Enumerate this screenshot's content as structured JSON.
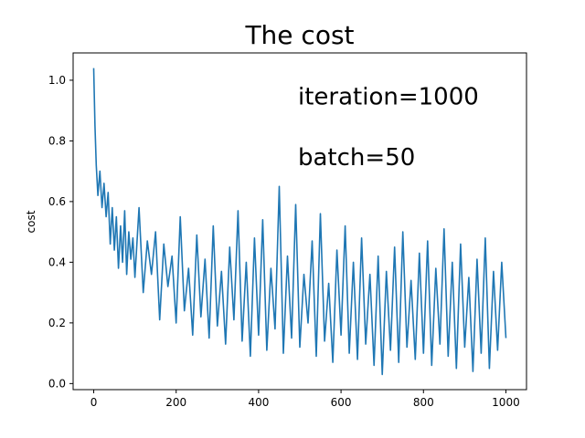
{
  "chart_data": {
    "type": "line",
    "title": "The cost",
    "xlabel": "",
    "ylabel": "cost",
    "xlim": [
      -50,
      1050
    ],
    "ylim": [
      -0.02,
      1.09
    ],
    "x_ticks": [
      0,
      200,
      400,
      600,
      800,
      1000
    ],
    "y_ticks": [
      0.0,
      0.2,
      0.4,
      0.6,
      0.8,
      1.0
    ],
    "x_tick_labels": [
      "0",
      "200",
      "400",
      "600",
      "800",
      "1000"
    ],
    "y_tick_labels": [
      "0.0",
      "0.2",
      "0.4",
      "0.6",
      "0.8",
      "1.0"
    ],
    "grid": false,
    "annotations": [
      {
        "text": "iteration=1000",
        "x": 500,
        "y": 0.92
      },
      {
        "text": "batch=50",
        "x": 500,
        "y": 0.72
      }
    ],
    "series": [
      {
        "color": "#1f77b4",
        "x": [
          0,
          3,
          6,
          10,
          15,
          20,
          25,
          30,
          35,
          40,
          45,
          50,
          55,
          60,
          65,
          70,
          75,
          80,
          85,
          90,
          95,
          100,
          110,
          120,
          130,
          140,
          150,
          160,
          170,
          180,
          190,
          200,
          210,
          220,
          230,
          240,
          250,
          260,
          270,
          280,
          290,
          300,
          310,
          320,
          330,
          340,
          350,
          360,
          370,
          380,
          390,
          400,
          410,
          420,
          430,
          440,
          450,
          460,
          470,
          480,
          490,
          500,
          510,
          520,
          530,
          540,
          550,
          560,
          570,
          580,
          590,
          600,
          610,
          620,
          630,
          640,
          650,
          660,
          670,
          680,
          690,
          700,
          710,
          720,
          730,
          740,
          750,
          760,
          770,
          780,
          790,
          800,
          810,
          820,
          830,
          840,
          850,
          860,
          870,
          880,
          890,
          900,
          910,
          920,
          930,
          940,
          950,
          960,
          970,
          980,
          990,
          1000
        ],
        "y": [
          1.04,
          0.85,
          0.72,
          0.62,
          0.7,
          0.58,
          0.66,
          0.55,
          0.63,
          0.46,
          0.58,
          0.44,
          0.55,
          0.38,
          0.52,
          0.4,
          0.57,
          0.36,
          0.5,
          0.41,
          0.48,
          0.35,
          0.58,
          0.3,
          0.47,
          0.36,
          0.5,
          0.21,
          0.46,
          0.32,
          0.42,
          0.2,
          0.55,
          0.24,
          0.38,
          0.16,
          0.49,
          0.22,
          0.41,
          0.15,
          0.52,
          0.19,
          0.37,
          0.13,
          0.45,
          0.21,
          0.57,
          0.14,
          0.4,
          0.09,
          0.48,
          0.16,
          0.54,
          0.11,
          0.38,
          0.18,
          0.65,
          0.1,
          0.42,
          0.15,
          0.59,
          0.12,
          0.36,
          0.2,
          0.47,
          0.09,
          0.56,
          0.14,
          0.33,
          0.07,
          0.44,
          0.16,
          0.52,
          0.1,
          0.4,
          0.08,
          0.48,
          0.13,
          0.36,
          0.06,
          0.42,
          0.03,
          0.37,
          0.11,
          0.45,
          0.07,
          0.5,
          0.12,
          0.34,
          0.08,
          0.43,
          0.1,
          0.47,
          0.06,
          0.38,
          0.13,
          0.51,
          0.09,
          0.4,
          0.05,
          0.46,
          0.12,
          0.35,
          0.04,
          0.41,
          0.1,
          0.48,
          0.05,
          0.37,
          0.11,
          0.4,
          0.15
        ]
      }
    ]
  }
}
